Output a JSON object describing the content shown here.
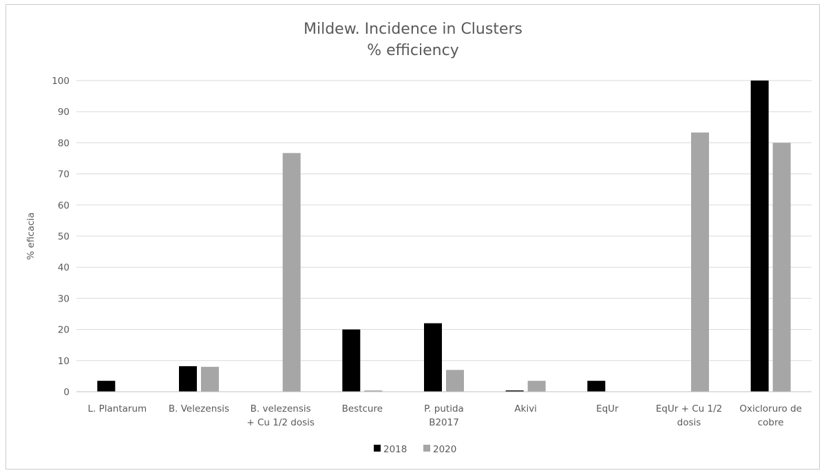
{
  "chart_data": {
    "type": "bar",
    "title": [
      "Mildew. Incidence in Clusters",
      "% efficiency"
    ],
    "ylabel": "% eficacia",
    "xlabel": "",
    "ylim": [
      0,
      100
    ],
    "yticks": [
      0,
      10,
      20,
      30,
      40,
      50,
      60,
      70,
      80,
      90,
      100
    ],
    "grid": true,
    "legend_position": "bottom",
    "categories": [
      [
        "L. Plantarum"
      ],
      [
        "B. Velezensis"
      ],
      [
        "B. velezensis",
        "+ Cu 1/2 dosis"
      ],
      [
        "Bestcure"
      ],
      [
        "P. putida",
        "B2017"
      ],
      [
        "Akivi"
      ],
      [
        "EqUr"
      ],
      [
        "EqUr + Cu 1/2",
        "dosis"
      ],
      [
        "Oxicloruro de",
        "cobre"
      ]
    ],
    "series": [
      {
        "name": "2018",
        "color": "#000000",
        "values": [
          3.5,
          8.2,
          0,
          20,
          22,
          0.4,
          3.5,
          0,
          100
        ]
      },
      {
        "name": "2020",
        "color": "#a6a6a6",
        "values": [
          0,
          8,
          76.7,
          0.4,
          7,
          3.5,
          0,
          83.3,
          80
        ]
      }
    ]
  }
}
